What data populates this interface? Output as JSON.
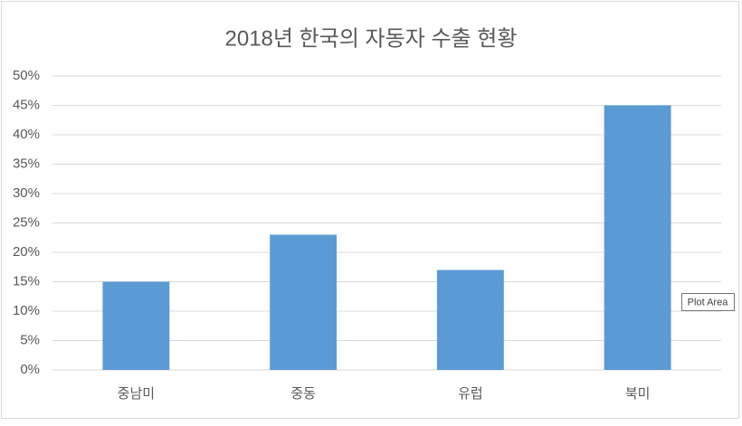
{
  "chart_data": {
    "type": "bar",
    "title": "2018년 한국의 자동자 수출 현황",
    "categories": [
      "중남미",
      "중동",
      "유럽",
      "북미"
    ],
    "values": [
      15,
      23,
      17,
      45
    ],
    "color": "#5b9bd5",
    "ylim": [
      0,
      50
    ],
    "yticks": [
      {
        "value": 0,
        "label": "0%"
      },
      {
        "value": 5,
        "label": "5%"
      },
      {
        "value": 10,
        "label": "10%"
      },
      {
        "value": 15,
        "label": "15%"
      },
      {
        "value": 20,
        "label": "20%"
      },
      {
        "value": 25,
        "label": "25%"
      },
      {
        "value": 30,
        "label": "30%"
      },
      {
        "value": 35,
        "label": "35%"
      },
      {
        "value": 40,
        "label": "40%"
      },
      {
        "value": 45,
        "label": "45%"
      },
      {
        "value": 50,
        "label": "50%"
      }
    ],
    "grid": true,
    "tooltip": "Plot Area"
  }
}
